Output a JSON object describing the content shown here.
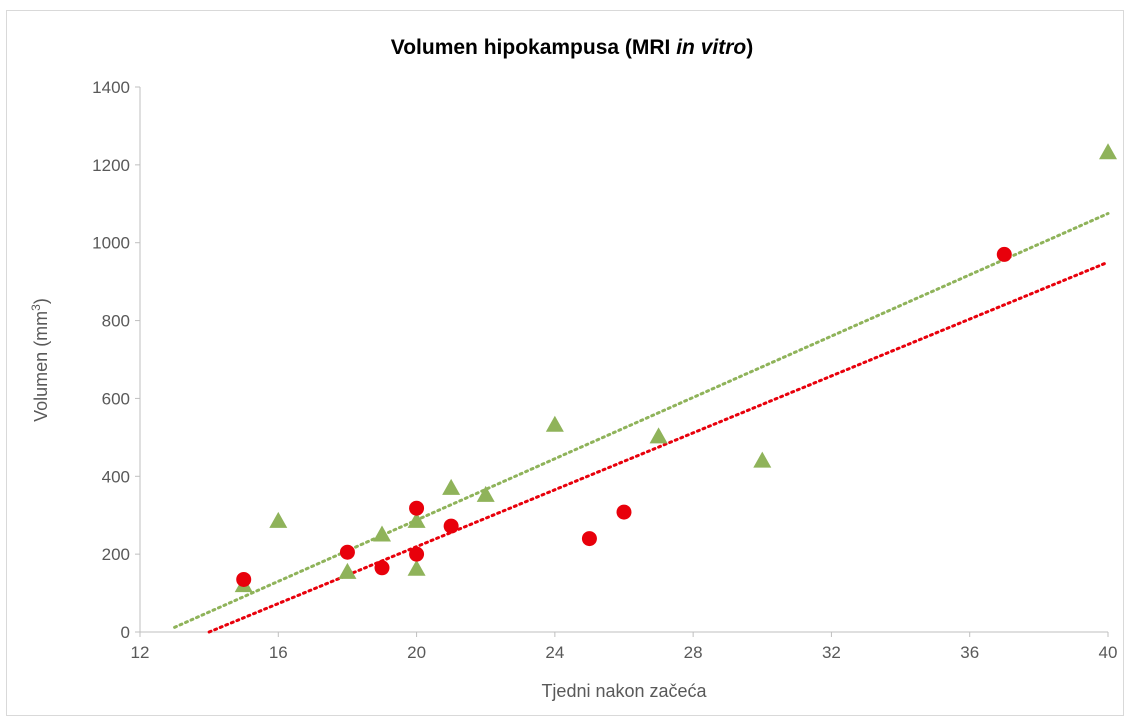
{
  "chart_data": {
    "type": "scatter",
    "title": {
      "prefix": "Volumen hipokampusa (MRI ",
      "italic": "in vitro",
      "suffix": ")"
    },
    "xlabel": "Tjedni nakon začeća",
    "ylabel": {
      "main": "Volumen (mm",
      "superscript": "3",
      "close": ")"
    },
    "xlim": [
      12,
      40
    ],
    "ylim": [
      0,
      1400
    ],
    "xticks": [
      "12",
      "16",
      "20",
      "24",
      "28",
      "32",
      "36",
      "40"
    ],
    "yticks": [
      "0",
      "200",
      "400",
      "600",
      "800",
      "1000",
      "1200",
      "1400"
    ],
    "grid": false,
    "legend": "none",
    "series": [
      {
        "marker": "circle",
        "color": "#e8000b",
        "points": [
          {
            "x": 15,
            "y": 135
          },
          {
            "x": 18,
            "y": 205
          },
          {
            "x": 19,
            "y": 165
          },
          {
            "x": 20,
            "y": 200
          },
          {
            "x": 20,
            "y": 318
          },
          {
            "x": 21,
            "y": 272
          },
          {
            "x": 25,
            "y": 240
          },
          {
            "x": 26,
            "y": 308
          },
          {
            "x": 37,
            "y": 970
          }
        ],
        "trendline": {
          "from": {
            "x": 14,
            "y": 0
          },
          "to": {
            "x": 40,
            "y": 950
          }
        }
      },
      {
        "marker": "triangle",
        "color": "#8fb35a",
        "points": [
          {
            "x": 15,
            "y": 118
          },
          {
            "x": 16,
            "y": 283
          },
          {
            "x": 18,
            "y": 152
          },
          {
            "x": 19,
            "y": 248
          },
          {
            "x": 20,
            "y": 160
          },
          {
            "x": 20,
            "y": 283
          },
          {
            "x": 21,
            "y": 368
          },
          {
            "x": 22,
            "y": 350
          },
          {
            "x": 24,
            "y": 530
          },
          {
            "x": 27,
            "y": 500
          },
          {
            "x": 30,
            "y": 438
          },
          {
            "x": 40,
            "y": 1230
          }
        ],
        "trendline": {
          "from": {
            "x": 13,
            "y": 12
          },
          "to": {
            "x": 40,
            "y": 1075
          }
        }
      }
    ]
  }
}
